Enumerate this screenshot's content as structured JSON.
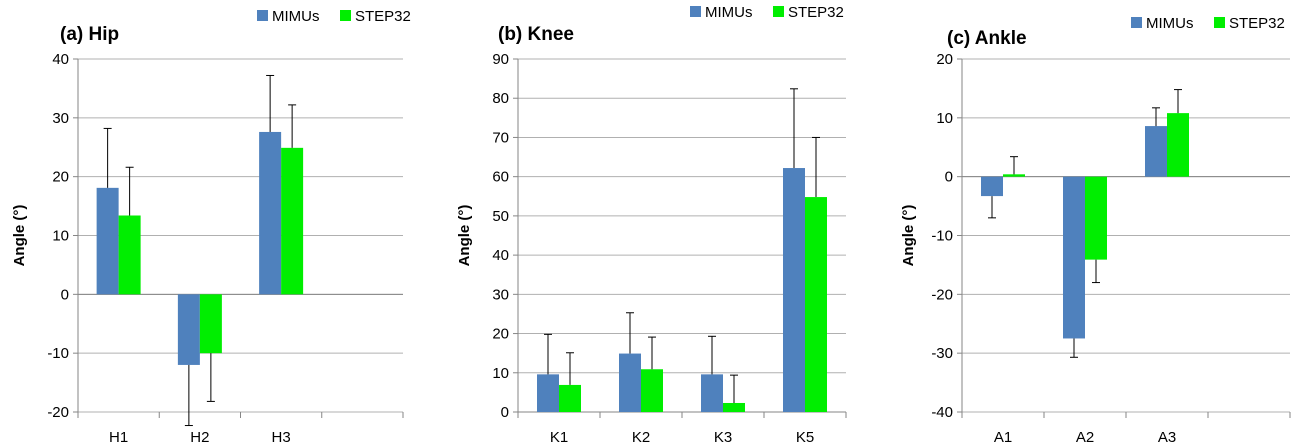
{
  "colors": {
    "mimus": "#4f81bd",
    "step32": "#00ee00",
    "grid": "#b0b0b0",
    "axis": "#868686",
    "error": "#000000"
  },
  "chart_data": [
    {
      "type": "bar",
      "title": "(a) Hip",
      "xlabel": "",
      "ylabel": "Angle (°)",
      "ylim": [
        -20,
        40
      ],
      "ytick_step": 10,
      "grid": true,
      "legend": "top-right",
      "categories": [
        "H1",
        "H2",
        "H3"
      ],
      "slots": 4,
      "series": [
        {
          "name": "MIMUs",
          "values": [
            18.1,
            -12,
            27.6
          ],
          "errors": [
            10.1,
            10.3,
            9.6
          ]
        },
        {
          "name": "STEP32",
          "values": [
            13.4,
            -10,
            24.9
          ],
          "errors": [
            8.2,
            8.2,
            7.3
          ]
        }
      ]
    },
    {
      "type": "bar",
      "title": "(b) Knee",
      "xlabel": "",
      "ylabel": "Angle (°)",
      "ylim": [
        0,
        90
      ],
      "ytick_step": 10,
      "grid": true,
      "legend": "top-right",
      "categories": [
        "K1",
        "K2",
        "K3",
        "K5"
      ],
      "slots": 4,
      "series": [
        {
          "name": "MIMUs",
          "values": [
            9.6,
            14.9,
            9.6,
            62.2
          ],
          "errors": [
            10.2,
            10.4,
            9.7,
            20.2
          ]
        },
        {
          "name": "STEP32",
          "values": [
            6.9,
            10.9,
            2.3,
            54.8
          ],
          "errors": [
            8.2,
            8.2,
            7.1,
            15.2
          ]
        }
      ]
    },
    {
      "type": "bar",
      "title": "(c) Ankle",
      "xlabel": "",
      "ylabel": "Angle (°)",
      "ylim": [
        -40,
        20
      ],
      "ytick_step": 10,
      "grid": true,
      "legend": "top-right",
      "categories": [
        "A1",
        "A2",
        "A3"
      ],
      "slots": 4,
      "series": [
        {
          "name": "MIMUs",
          "values": [
            -3.3,
            -27.5,
            8.6
          ],
          "errors": [
            3.7,
            3.2,
            3.1
          ]
        },
        {
          "name": "STEP32",
          "values": [
            0.4,
            -14.1,
            10.8
          ],
          "errors": [
            3,
            3.9,
            4
          ]
        }
      ]
    }
  ]
}
